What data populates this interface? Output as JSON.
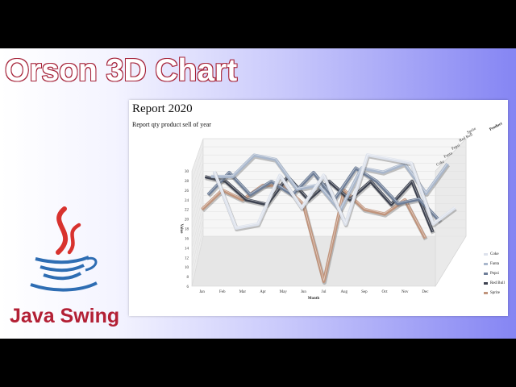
{
  "headline": "Orson 3D Chart",
  "badge": "Java Swing",
  "chart_data": {
    "type": "line",
    "style": "3d",
    "title": "Report 2020",
    "subtitle": "Report qty product sell of year",
    "xlabel": "Month",
    "ylabel": "Value",
    "ylim": [
      6,
      30
    ],
    "yticks": [
      6,
      8,
      10,
      12,
      14,
      16,
      18,
      20,
      22,
      24,
      26,
      28,
      30
    ],
    "categories": [
      "Jan",
      "Feb",
      "Mar",
      "Apr",
      "May",
      "Jun",
      "Jul",
      "Aug",
      "Sep",
      "Oct",
      "Nov",
      "Dec"
    ],
    "depth_axis_title": "Product",
    "depth_axis_labels": [
      "Sprite",
      "Red Bull",
      "Pepsi",
      "Fanta",
      "Coke"
    ],
    "legend_position": "bottom-right",
    "series": [
      {
        "name": "Coke",
        "color": "#dde2ec",
        "values": [
          22,
          8,
          9,
          21,
          13,
          21,
          9,
          26,
          25,
          24,
          9,
          13
        ]
      },
      {
        "name": "Fanta",
        "color": "#a9b7cc",
        "values": [
          23,
          23,
          28,
          27,
          20,
          21,
          15,
          25,
          24,
          26,
          19,
          26
        ]
      },
      {
        "name": "Pepsi",
        "color": "#6e7e98",
        "values": [
          21,
          26,
          21,
          24,
          21,
          26,
          20,
          27,
          24,
          19,
          20,
          15
        ]
      },
      {
        "name": "Red Bull",
        "color": "#3d4250",
        "values": [
          27,
          26,
          22,
          21,
          27,
          22,
          26,
          22,
          26,
          21,
          26,
          15
        ]
      },
      {
        "name": "Sprite",
        "color": "#c0947c",
        "values": [
          22,
          26,
          24,
          27,
          27,
          23,
          7,
          26,
          22,
          21,
          24,
          16
        ]
      }
    ]
  }
}
